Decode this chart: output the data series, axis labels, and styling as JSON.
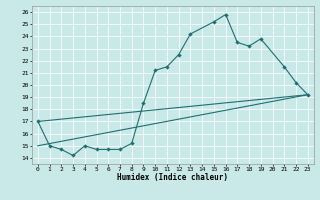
{
  "title": "",
  "xlabel": "Humidex (Indice chaleur)",
  "ylabel": "",
  "background_color": "#c9e8e8",
  "line_color": "#1e7070",
  "xlim": [
    -0.5,
    23.5
  ],
  "ylim": [
    13.5,
    26.5
  ],
  "xticks": [
    0,
    1,
    2,
    3,
    4,
    5,
    6,
    7,
    8,
    9,
    10,
    11,
    12,
    13,
    14,
    15,
    16,
    17,
    18,
    19,
    20,
    21,
    22,
    23
  ],
  "yticks": [
    14,
    15,
    16,
    17,
    18,
    19,
    20,
    21,
    22,
    23,
    24,
    25,
    26
  ],
  "line1": {
    "x": [
      0,
      1,
      2,
      3,
      4,
      5,
      6,
      7,
      8,
      9,
      10,
      11,
      12,
      13,
      15,
      16,
      17,
      18,
      19,
      21,
      22,
      23
    ],
    "y": [
      17,
      15,
      14.7,
      14.2,
      15.0,
      14.7,
      14.7,
      14.7,
      15.2,
      18.5,
      21.2,
      21.5,
      22.5,
      24.2,
      25.2,
      25.8,
      23.5,
      23.2,
      23.8,
      21.5,
      20.2,
      19.2
    ]
  },
  "line2": {
    "x": [
      0,
      23
    ],
    "y": [
      15.0,
      19.2
    ]
  },
  "line3": {
    "x": [
      0,
      23
    ],
    "y": [
      17.0,
      19.2
    ]
  }
}
